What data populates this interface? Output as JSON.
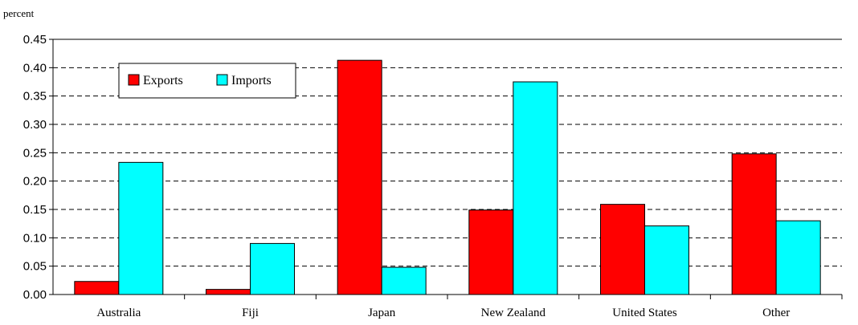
{
  "chart_data": {
    "type": "bar",
    "ylabel": "percent",
    "ylim": [
      0,
      0.45
    ],
    "yticks": [
      "0.00",
      "0.05",
      "0.10",
      "0.15",
      "0.20",
      "0.25",
      "0.30",
      "0.35",
      "0.40",
      "0.45"
    ],
    "categories": [
      "Australia",
      "Fiji",
      "Japan",
      "New Zealand",
      "United States",
      "Other"
    ],
    "series": [
      {
        "name": "Exports",
        "color": "#ff0000",
        "values": [
          0.023,
          0.009,
          0.413,
          0.149,
          0.159,
          0.248
        ]
      },
      {
        "name": "Imports",
        "color": "#00ffff",
        "values": [
          0.233,
          0.09,
          0.048,
          0.375,
          0.121,
          0.13
        ]
      }
    ],
    "grid": true,
    "legend_position": "top-left"
  }
}
